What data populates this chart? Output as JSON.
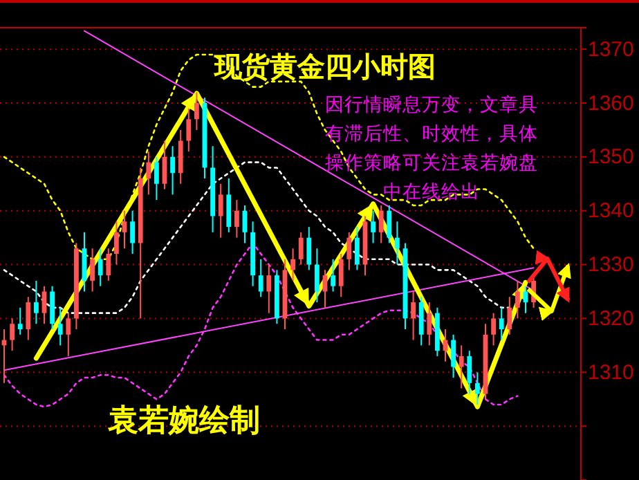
{
  "chart_data": {
    "type": "candlestick",
    "title": "现货黄金四小时图",
    "annotations": [
      "因行情瞬息万变，文章具有滞后性、时效性，具体操作策略可关注袁若婉盘中在线给出",
      "袁若婉绘制"
    ],
    "categories": [
      null,
      null,
      null,
      null,
      null,
      null,
      null,
      null,
      null,
      null,
      null,
      null,
      null,
      null,
      null,
      null,
      null,
      null,
      null,
      null,
      null,
      null,
      null,
      null,
      null,
      null,
      null,
      null,
      null,
      null,
      null,
      null,
      null,
      null,
      null,
      null,
      null,
      null,
      null,
      null,
      null,
      null,
      null,
      null,
      null,
      null,
      null,
      null,
      null,
      null,
      null,
      null,
      null,
      null,
      null,
      null,
      null,
      null,
      null,
      null,
      null,
      null,
      null,
      null,
      null,
      null,
      null
    ],
    "ohlc": [
      [
        1315,
        1318,
        1308,
        1316
      ],
      [
        1316,
        1320,
        1314,
        1319
      ],
      [
        1319,
        1322,
        1317,
        1318
      ],
      [
        1318,
        1324,
        1316,
        1323
      ],
      [
        1323,
        1327,
        1319,
        1321
      ],
      [
        1321,
        1326,
        1319,
        1325
      ],
      [
        1325,
        1326,
        1318,
        1319
      ],
      [
        1319,
        1322,
        1315,
        1317
      ],
      [
        1317,
        1321,
        1313,
        1320
      ],
      [
        1320,
        1334,
        1318,
        1333
      ],
      [
        1333,
        1336,
        1325,
        1327
      ],
      [
        1327,
        1333,
        1325,
        1331
      ],
      [
        1331,
        1333,
        1326,
        1328
      ],
      [
        1328,
        1333,
        1327,
        1332
      ],
      [
        1332,
        1338,
        1330,
        1336
      ],
      [
        1336,
        1340,
        1333,
        1338
      ],
      [
        1338,
        1340,
        1332,
        1334
      ],
      [
        1334,
        1348,
        1320,
        1346
      ],
      [
        1346,
        1351,
        1343,
        1349
      ],
      [
        1349,
        1350,
        1342,
        1345
      ],
      [
        1345,
        1353,
        1344,
        1350
      ],
      [
        1350,
        1352,
        1343,
        1347
      ],
      [
        1347,
        1355,
        1345,
        1353
      ],
      [
        1353,
        1359,
        1351,
        1357
      ],
      [
        1357,
        1362,
        1355,
        1360
      ],
      [
        1360,
        1361,
        1346,
        1348
      ],
      [
        1348,
        1352,
        1336,
        1339
      ],
      [
        1339,
        1345,
        1335,
        1343
      ],
      [
        1343,
        1346,
        1336,
        1337
      ],
      [
        1337,
        1342,
        1335,
        1340
      ],
      [
        1340,
        1341,
        1334,
        1336
      ],
      [
        1336,
        1338,
        1326,
        1328
      ],
      [
        1328,
        1331,
        1324,
        1325
      ],
      [
        1325,
        1330,
        1321,
        1328
      ],
      [
        1328,
        1329,
        1319,
        1320
      ],
      [
        1320,
        1331,
        1318,
        1329
      ],
      [
        1329,
        1333,
        1327,
        1331
      ],
      [
        1331,
        1336,
        1330,
        1335
      ],
      [
        1335,
        1337,
        1329,
        1330
      ],
      [
        1330,
        1333,
        1323,
        1325
      ],
      [
        1325,
        1329,
        1322,
        1328
      ],
      [
        1328,
        1331,
        1325,
        1326
      ],
      [
        1326,
        1332,
        1324,
        1331
      ],
      [
        1331,
        1336,
        1329,
        1335
      ],
      [
        1335,
        1337,
        1329,
        1330
      ],
      [
        1330,
        1339,
        1328,
        1338
      ],
      [
        1338,
        1340,
        1334,
        1336
      ],
      [
        1336,
        1341,
        1334,
        1340
      ],
      [
        1340,
        1341,
        1334,
        1335
      ],
      [
        1335,
        1338,
        1330,
        1333
      ],
      [
        1333,
        1334,
        1318,
        1320
      ],
      [
        1320,
        1325,
        1316,
        1323
      ],
      [
        1323,
        1324,
        1315,
        1317
      ],
      [
        1317,
        1323,
        1315,
        1321
      ],
      [
        1321,
        1322,
        1313,
        1314
      ],
      [
        1314,
        1318,
        1312,
        1316
      ],
      [
        1316,
        1317,
        1309,
        1311
      ],
      [
        1311,
        1315,
        1307,
        1313
      ],
      [
        1313,
        1314,
        1306,
        1308
      ],
      [
        1308,
        1310,
        1304,
        1306
      ],
      [
        1306,
        1319,
        1305,
        1317
      ],
      [
        1317,
        1321,
        1315,
        1320
      ],
      [
        1320,
        1322,
        1316,
        1318
      ],
      [
        1318,
        1324,
        1317,
        1322
      ],
      [
        1322,
        1327,
        1320,
        1325
      ],
      [
        1325,
        1326,
        1321,
        1323
      ],
      [
        1323,
        1328,
        1322,
        1327
      ]
    ],
    "colors": [
      "#ff5555",
      "#ff5555",
      "#00ffff",
      "#ff5555",
      "#00ffff",
      "#ff5555",
      "#00ffff",
      "#00ffff",
      "#ff5555",
      "#ff5555",
      "#00ffff",
      "#ff5555",
      "#00ffff",
      "#ff5555",
      "#ff5555",
      "#ff5555",
      "#00ffff",
      "#ff5555",
      "#ff5555",
      "#00ffff",
      "#ff5555",
      "#00ffff",
      "#ff5555",
      "#ff5555",
      "#ff5555",
      "#00ffff",
      "#00ffff",
      "#ff5555",
      "#00ffff",
      "#ff5555",
      "#00ffff",
      "#00ffff",
      "#00ffff",
      "#ff5555",
      "#00ffff",
      "#ff5555",
      "#ff5555",
      "#ff5555",
      "#00ffff",
      "#00ffff",
      "#ff5555",
      "#00ffff",
      "#ff5555",
      "#ff5555",
      "#00ffff",
      "#ff5555",
      "#00ffff",
      "#ff5555",
      "#00ffff",
      "#00ffff",
      "#00ffff",
      "#ff5555",
      "#00ffff",
      "#ff5555",
      "#00ffff",
      "#ff5555",
      "#00ffff",
      "#ff5555",
      "#00ffff",
      "#00ffff",
      "#ff5555",
      "#ff5555",
      "#00ffff",
      "#ff5555",
      "#ff5555",
      "#00ffff",
      "#ff5555"
    ],
    "series": [
      {
        "type": "line",
        "color": "#ffff00",
        "line_style": "dotted",
        "values": [
          1350,
          1349,
          1348,
          1347,
          1346,
          1345,
          1342,
          1340,
          1336,
          1333,
          1332,
          1331,
          1331,
          1331,
          1334,
          1339,
          1343,
          1347,
          1352,
          1356,
          1359,
          1362,
          1366,
          1368,
          1369,
          1369,
          1369,
          1368,
          1367,
          1365,
          1364,
          1363,
          1363,
          1364,
          1364,
          1364,
          1364,
          1364,
          1362,
          1358,
          1355,
          1353,
          1351,
          1348,
          1346,
          1344,
          1343,
          1343,
          1342,
          1342,
          1342,
          1341,
          1341,
          1342,
          1342,
          1342,
          1343,
          1343,
          1343,
          1344,
          1344,
          1343,
          1342,
          1340,
          1338,
          1335,
          1333
        ]
      },
      {
        "type": "line",
        "color": "#ffffff",
        "line_style": "dotted",
        "values": [
          1329,
          1328,
          1327,
          1326,
          1325,
          1323,
          1322,
          1322,
          1321,
          1321,
          1321,
          1321,
          1321,
          1321,
          1321,
          1322,
          1324,
          1327,
          1329,
          1331,
          1333,
          1335,
          1337,
          1339,
          1341,
          1343,
          1345,
          1346,
          1347,
          1348,
          1349,
          1349,
          1349,
          1348,
          1348,
          1346,
          1344,
          1342,
          1340,
          1339,
          1337,
          1336,
          1334,
          1333,
          1332,
          1331,
          1331,
          1331,
          1331,
          1330,
          1330,
          1330,
          1330,
          1330,
          1329,
          1329,
          1329,
          1328,
          1327,
          1326,
          1324,
          1323,
          1322,
          1322,
          null,
          null,
          null
        ]
      },
      {
        "type": "line",
        "color": "#ff33ff",
        "line_style": "dotted",
        "values": [
          1309.5,
          1307.5,
          1306,
          1305,
          1304,
          1303.6,
          1304,
          1305,
          1306,
          1308,
          1309,
          1309,
          1309.5,
          1309.5,
          1309,
          1309,
          1308,
          1307,
          1306,
          1305,
          1306,
          1308,
          1310,
          1313,
          1315,
          1318,
          1322,
          1324,
          1327,
          1330,
          1332,
          1334,
          1332,
          1330,
          1328,
          1325,
          1322,
          1320,
          1318,
          1316,
          1316,
          1316,
          1317,
          1317,
          1318,
          1319,
          1320,
          1321,
          1321.5,
          1321.5,
          1321.5,
          1321,
          1320,
          1319,
          1317,
          1315,
          1314,
          1312,
          1311,
          1308,
          1305,
          1304,
          1304,
          1305,
          1305.6,
          null,
          null
        ]
      },
      {
        "type": "line",
        "color": "#ff44ff",
        "line_style": "solid",
        "values": [
          null,
          null,
          null,
          null,
          null,
          null,
          null,
          null,
          null,
          null,
          1373.4,
          null,
          null,
          null,
          null,
          null,
          null,
          null,
          null,
          null,
          null,
          null,
          null,
          null,
          null,
          null,
          null,
          null,
          null,
          null,
          null,
          null,
          null,
          null,
          null,
          null,
          null,
          null,
          null,
          null,
          null,
          null,
          null,
          null,
          null,
          null,
          null,
          null,
          null,
          null,
          null,
          null,
          null,
          null,
          null,
          null,
          null,
          null,
          null,
          null,
          null,
          null,
          null,
          null,
          null,
          null,
          1325.2
        ]
      },
      {
        "type": "line",
        "color": "#ff44ff",
        "line_style": "solid",
        "values": [
          1310.4,
          null,
          null,
          null,
          null,
          null,
          null,
          null,
          null,
          null,
          null,
          null,
          null,
          null,
          null,
          null,
          null,
          null,
          null,
          null,
          null,
          null,
          null,
          null,
          null,
          null,
          null,
          null,
          null,
          null,
          null,
          null,
          null,
          null,
          null,
          null,
          null,
          null,
          null,
          null,
          null,
          null,
          null,
          null,
          null,
          null,
          null,
          null,
          null,
          null,
          null,
          null,
          null,
          null,
          null,
          null,
          null,
          null,
          null,
          null,
          null,
          null,
          null,
          null,
          null,
          null,
          1329.4
        ]
      },
      {
        "type": "line",
        "color": "#ffff00",
        "line_style": "solid",
        "values": [
          null,
          null,
          null,
          null,
          1312.6,
          null,
          null,
          null,
          null,
          null,
          null,
          null,
          null,
          null,
          null,
          null,
          null,
          null,
          null,
          null,
          null,
          null,
          null,
          null,
          1361.8,
          null,
          null,
          null,
          null,
          null,
          null,
          null,
          null,
          null,
          null,
          null,
          null,
          null,
          1322.3,
          null,
          null,
          null,
          null,
          null,
          null,
          null,
          1341.3,
          null,
          null,
          null,
          null,
          null,
          null,
          null,
          null,
          null,
          null,
          null,
          null,
          1303.6,
          null,
          null,
          null,
          null,
          null,
          1326.7,
          null
        ]
      }
    ],
    "ylim": [
      1290,
      1374
    ],
    "yticks": [
      {
        "value": 1300,
        "label": null
      },
      1310,
      1320,
      1330,
      1340,
      1350,
      1360,
      1370
    ],
    "tick_labels": "y",
    "grid": "y"
  }
}
